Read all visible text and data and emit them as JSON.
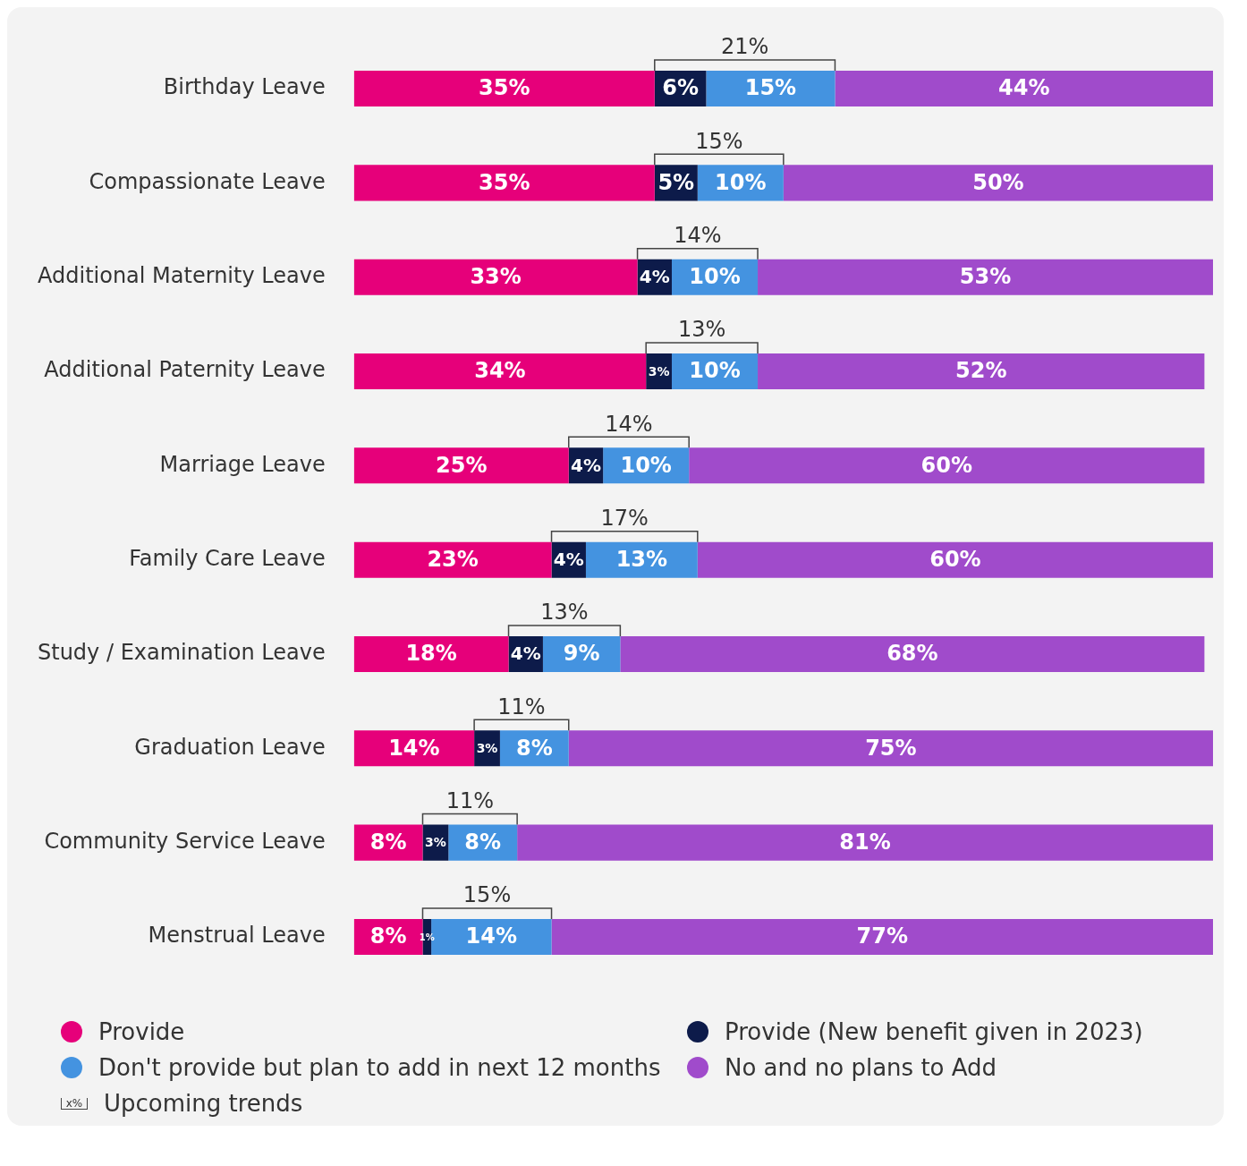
{
  "chart_data": {
    "type": "bar",
    "orientation": "horizontal",
    "stacked": true,
    "tick_labels": "y",
    "legend": "bottom",
    "categories": [
      "Birthday Leave",
      "Compassionate Leave",
      "Additional Maternity Leave",
      "Additional Paternity Leave",
      "Marriage Leave",
      "Family Care Leave",
      "Study / Examination Leave",
      "Graduation Leave",
      "Community Service Leave",
      "Menstrual Leave"
    ],
    "series": [
      {
        "name": "Provide",
        "color": "#e6007a",
        "values": [
          35,
          35,
          33,
          34,
          25,
          23,
          18,
          14,
          8,
          8
        ],
        "value_labels": [
          "35%",
          "35%",
          "33%",
          "34%",
          "25%",
          "23%",
          "18%",
          "14%",
          "8%",
          "8%"
        ]
      },
      {
        "name": "Provide (New benefit given in 2023)",
        "color": "#0d1b4a",
        "values": [
          6,
          5,
          4,
          3,
          4,
          4,
          4,
          3,
          3,
          1
        ],
        "value_labels": [
          "6%",
          "5%",
          "4%",
          "3%",
          "4%",
          "4%",
          "4%",
          "3%",
          "3%",
          "1%"
        ]
      },
      {
        "name": "Don't provide but plan to add in next 12 months",
        "color": "#4493e0",
        "values": [
          15,
          10,
          10,
          10,
          10,
          13,
          9,
          8,
          8,
          14
        ],
        "value_labels": [
          "15%",
          "10%",
          "10%",
          "10%",
          "10%",
          "13%",
          "9%",
          "8%",
          "8%",
          "14%"
        ]
      },
      {
        "name": "No and no plans to Add",
        "color": "#a04bcb",
        "values": [
          44,
          50,
          53,
          52,
          60,
          60,
          68,
          75,
          81,
          77
        ],
        "value_labels": [
          "44%",
          "50%",
          "53%",
          "52%",
          "60%",
          "60%",
          "68%",
          "75%",
          "81%",
          "77%"
        ]
      }
    ],
    "annotations": [
      "21%",
      "15%",
      "14%",
      "13%",
      "14%",
      "17%",
      "13%",
      "11%",
      "11%",
      "15%",
      "x%",
      "Upcoming trends"
    ]
  }
}
